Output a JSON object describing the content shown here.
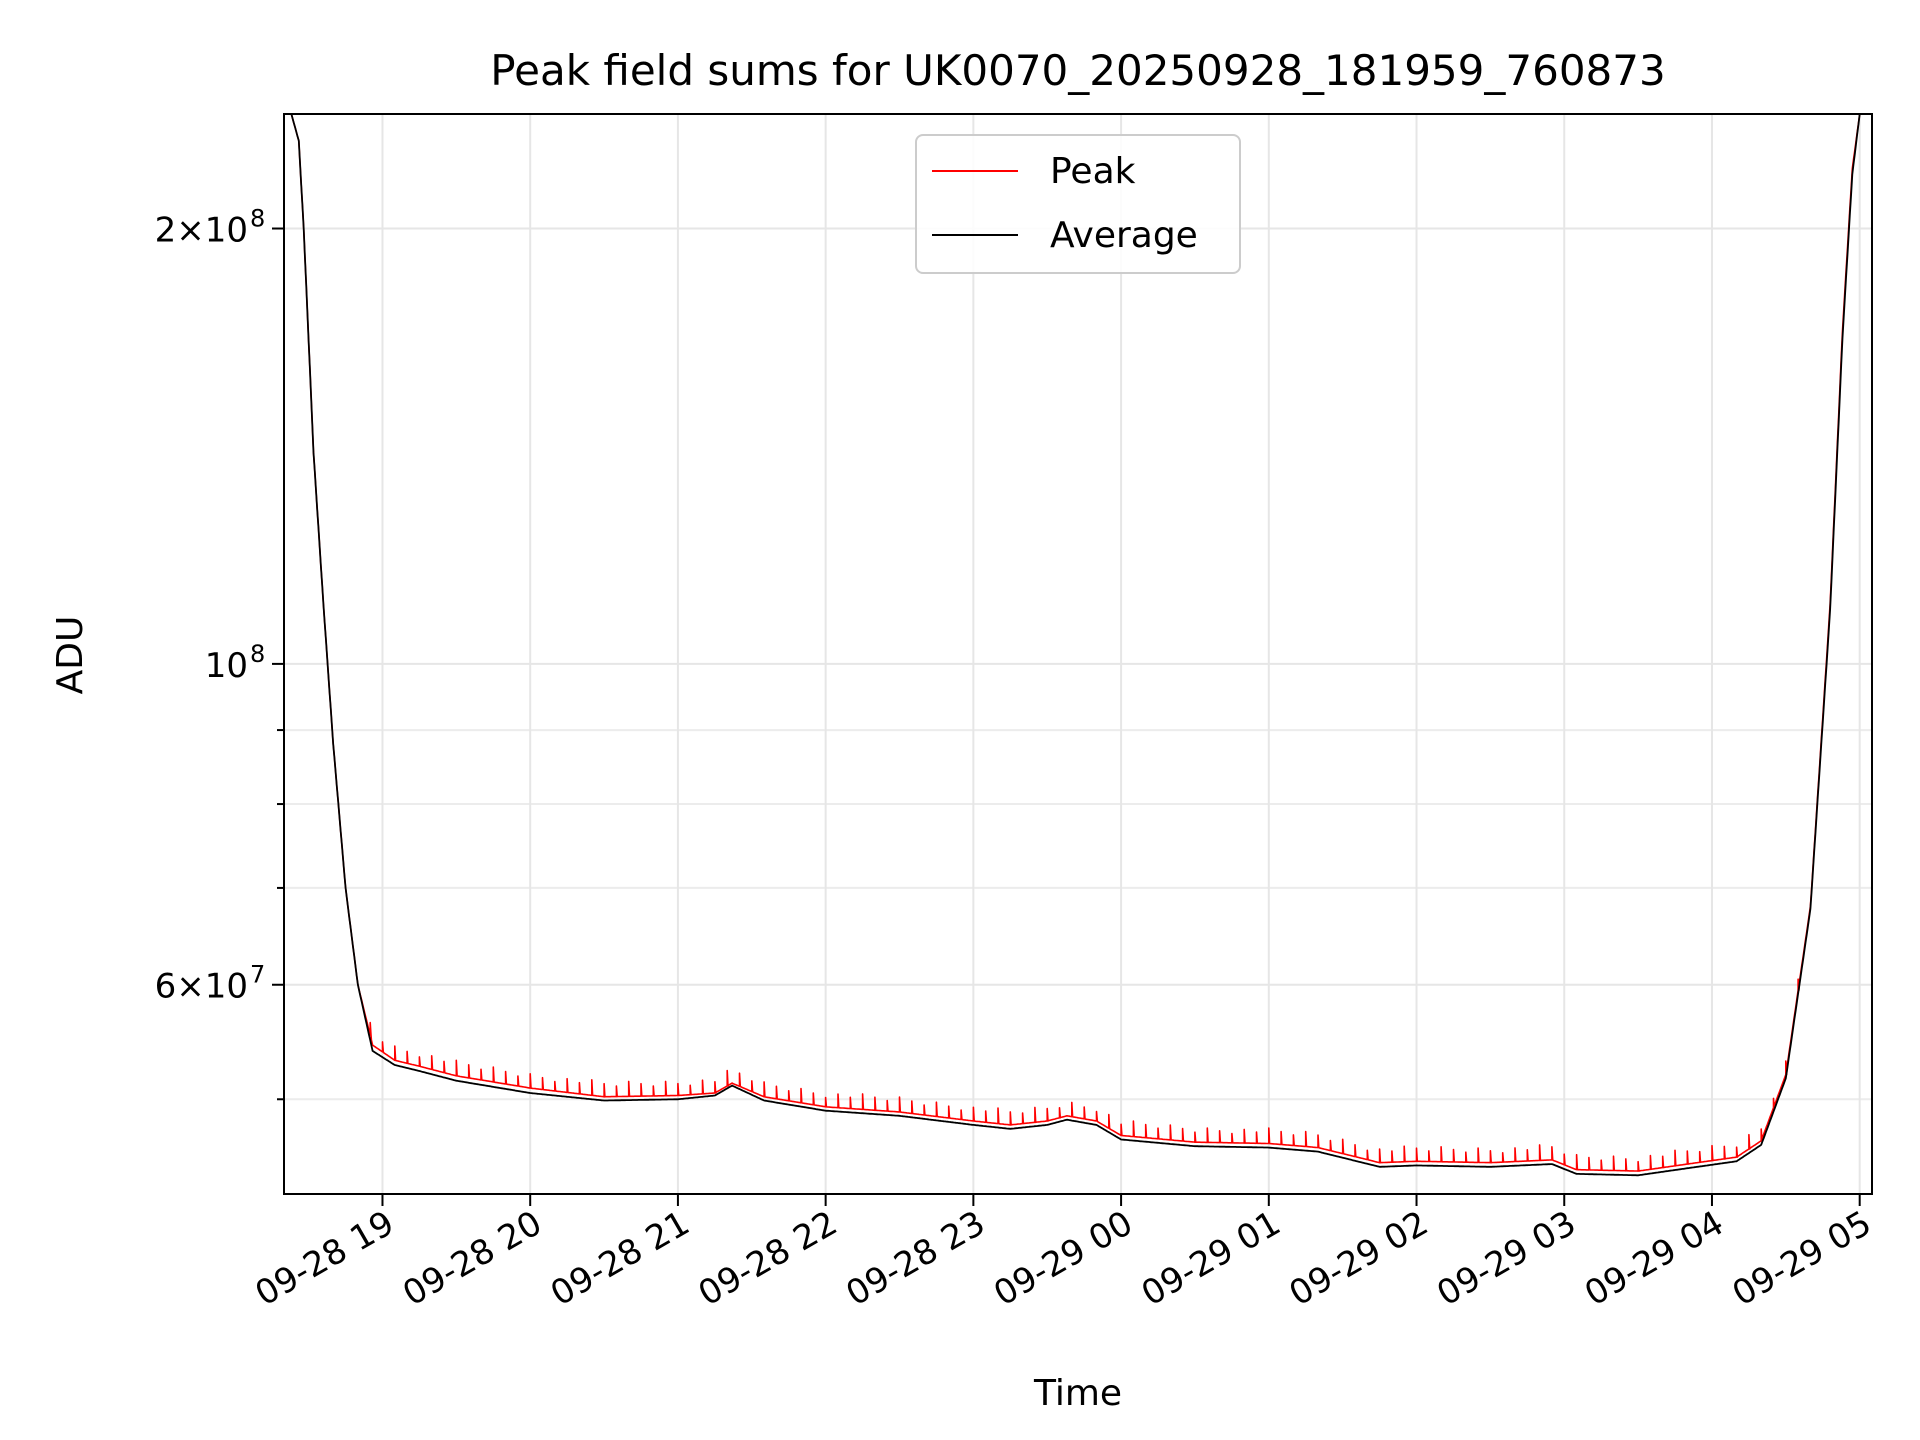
{
  "chart_data": {
    "type": "line",
    "title": "Peak field sums for UK0070_20250928_181959_760873",
    "xlabel": "Time",
    "ylabel": "ADU",
    "x_range": [
      "2025-09-28T18:20",
      "2025-09-29T05:05"
    ],
    "ylim": [
      43000000,
      240000000
    ],
    "y_scale": "log",
    "grid": true,
    "legend_position": "upper center",
    "x_ticks": [
      {
        "t": "2025-09-28T19:00",
        "label": "09-28 19"
      },
      {
        "t": "2025-09-28T20:00",
        "label": "09-28 20"
      },
      {
        "t": "2025-09-28T21:00",
        "label": "09-28 21"
      },
      {
        "t": "2025-09-28T22:00",
        "label": "09-28 22"
      },
      {
        "t": "2025-09-28T23:00",
        "label": "09-28 23"
      },
      {
        "t": "2025-09-29T00:00",
        "label": "09-29 00"
      },
      {
        "t": "2025-09-29T01:00",
        "label": "09-29 01"
      },
      {
        "t": "2025-09-29T02:00",
        "label": "09-29 02"
      },
      {
        "t": "2025-09-29T03:00",
        "label": "09-29 03"
      },
      {
        "t": "2025-09-29T04:00",
        "label": "09-29 04"
      },
      {
        "t": "2025-09-29T05:00",
        "label": "09-29 05"
      }
    ],
    "y_ticks": [
      {
        "value": 60000000,
        "base": "6×10",
        "exp": "7"
      },
      {
        "value": 100000000,
        "base": "10",
        "exp": "8"
      },
      {
        "value": 200000000,
        "base": "2×10",
        "exp": "8"
      }
    ],
    "y_minor_ticks": [
      50000000,
      70000000,
      80000000,
      90000000
    ],
    "series": [
      {
        "name": "Peak",
        "color": "#ff0000",
        "spike_interval_minutes": 5,
        "spike_height_fraction": 0.025,
        "points": [
          [
            "2025-09-28T18:20",
            240000000
          ],
          [
            "2025-09-28T18:23",
            240000000
          ],
          [
            "2025-09-28T18:26",
            230000000
          ],
          [
            "2025-09-28T18:28",
            200000000
          ],
          [
            "2025-09-28T18:32",
            140000000
          ],
          [
            "2025-09-28T18:36",
            110000000
          ],
          [
            "2025-09-28T18:40",
            88000000
          ],
          [
            "2025-09-28T18:45",
            70000000
          ],
          [
            "2025-09-28T18:50",
            60000000
          ],
          [
            "2025-09-28T18:56",
            54500000
          ],
          [
            "2025-09-28T19:05",
            53200000
          ],
          [
            "2025-09-28T19:15",
            52700000
          ],
          [
            "2025-09-28T19:30",
            51900000
          ],
          [
            "2025-09-28T20:00",
            50900000
          ],
          [
            "2025-09-28T20:30",
            50200000
          ],
          [
            "2025-09-28T21:00",
            50300000
          ],
          [
            "2025-09-28T21:15",
            50500000
          ],
          [
            "2025-09-28T21:22",
            51300000
          ],
          [
            "2025-09-28T21:35",
            50200000
          ],
          [
            "2025-09-28T22:00",
            49400000
          ],
          [
            "2025-09-28T22:30",
            49000000
          ],
          [
            "2025-09-28T23:00",
            48300000
          ],
          [
            "2025-09-28T23:15",
            48000000
          ],
          [
            "2025-09-28T23:30",
            48300000
          ],
          [
            "2025-09-28T23:38",
            48700000
          ],
          [
            "2025-09-28T23:50",
            48300000
          ],
          [
            "2025-09-29T00:00",
            47200000
          ],
          [
            "2025-09-29T00:30",
            46700000
          ],
          [
            "2025-09-29T01:00",
            46600000
          ],
          [
            "2025-09-29T01:20",
            46300000
          ],
          [
            "2025-09-29T01:45",
            45200000
          ],
          [
            "2025-09-29T02:00",
            45300000
          ],
          [
            "2025-09-29T02:30",
            45200000
          ],
          [
            "2025-09-29T02:55",
            45400000
          ],
          [
            "2025-09-29T03:05",
            44700000
          ],
          [
            "2025-09-29T03:30",
            44600000
          ],
          [
            "2025-09-29T03:50",
            45100000
          ],
          [
            "2025-09-29T04:10",
            45600000
          ],
          [
            "2025-09-29T04:20",
            46800000
          ],
          [
            "2025-09-29T04:30",
            52000000
          ],
          [
            "2025-09-29T04:40",
            68000000
          ],
          [
            "2025-09-29T04:48",
            110000000
          ],
          [
            "2025-09-29T04:53",
            170000000
          ],
          [
            "2025-09-29T04:57",
            220000000
          ],
          [
            "2025-09-29T05:00",
            240000000
          ],
          [
            "2025-09-29T05:05",
            240000000
          ]
        ]
      },
      {
        "name": "Average",
        "color": "#000000",
        "points": [
          [
            "2025-09-28T18:20",
            240000000
          ],
          [
            "2025-09-28T18:23",
            240000000
          ],
          [
            "2025-09-28T18:26",
            230000000
          ],
          [
            "2025-09-28T18:28",
            200000000
          ],
          [
            "2025-09-28T18:32",
            140000000
          ],
          [
            "2025-09-28T18:36",
            110000000
          ],
          [
            "2025-09-28T18:40",
            88000000
          ],
          [
            "2025-09-28T18:45",
            70000000
          ],
          [
            "2025-09-28T18:50",
            60000000
          ],
          [
            "2025-09-28T18:56",
            54000000
          ],
          [
            "2025-09-28T19:05",
            52800000
          ],
          [
            "2025-09-28T19:15",
            52300000
          ],
          [
            "2025-09-28T19:30",
            51500000
          ],
          [
            "2025-09-28T20:00",
            50500000
          ],
          [
            "2025-09-28T20:30",
            49900000
          ],
          [
            "2025-09-28T21:00",
            50000000
          ],
          [
            "2025-09-28T21:15",
            50300000
          ],
          [
            "2025-09-28T21:22",
            51100000
          ],
          [
            "2025-09-28T21:35",
            49900000
          ],
          [
            "2025-09-28T22:00",
            49100000
          ],
          [
            "2025-09-28T22:30",
            48700000
          ],
          [
            "2025-09-28T23:00",
            48000000
          ],
          [
            "2025-09-28T23:15",
            47700000
          ],
          [
            "2025-09-28T23:30",
            48000000
          ],
          [
            "2025-09-28T23:38",
            48400000
          ],
          [
            "2025-09-28T23:50",
            48000000
          ],
          [
            "2025-09-29T00:00",
            46900000
          ],
          [
            "2025-09-29T00:30",
            46400000
          ],
          [
            "2025-09-29T01:00",
            46300000
          ],
          [
            "2025-09-29T01:20",
            46000000
          ],
          [
            "2025-09-29T01:45",
            44900000
          ],
          [
            "2025-09-29T02:00",
            45000000
          ],
          [
            "2025-09-29T02:30",
            44900000
          ],
          [
            "2025-09-29T02:55",
            45100000
          ],
          [
            "2025-09-29T03:05",
            44400000
          ],
          [
            "2025-09-29T03:30",
            44300000
          ],
          [
            "2025-09-29T03:50",
            44800000
          ],
          [
            "2025-09-29T04:10",
            45300000
          ],
          [
            "2025-09-29T04:20",
            46500000
          ],
          [
            "2025-09-29T04:30",
            51700000
          ],
          [
            "2025-09-29T04:40",
            67700000
          ],
          [
            "2025-09-29T04:48",
            109000000
          ],
          [
            "2025-09-29T04:53",
            168000000
          ],
          [
            "2025-09-29T04:57",
            218000000
          ],
          [
            "2025-09-29T05:00",
            240000000
          ],
          [
            "2025-09-29T05:05",
            240000000
          ]
        ]
      }
    ]
  }
}
